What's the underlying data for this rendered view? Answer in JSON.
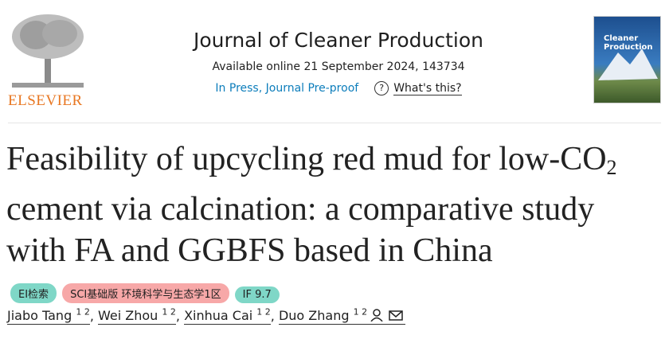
{
  "header": {
    "publisher": "ELSEVIER",
    "journal": "Journal of Cleaner Production",
    "available": "Available online 21 September 2024, 143734",
    "status": "In Press, Journal Pre-proof",
    "help": "What's this?",
    "cover_title": "Cleaner Production"
  },
  "article": {
    "title": {
      "line1": "Feasibility of upcycling red mud for low-CO",
      "subscript": "2",
      "line2": "cement via calcination: a comparative study",
      "line3": "with FA and GGBFS based in China"
    },
    "badges": [
      "EI检索",
      "SCI基础版 环境科学与生态学1区",
      "IF 9.7"
    ],
    "authors": [
      {
        "name": "Jiabo Tang",
        "aff": "1 2"
      },
      {
        "name": "Wei Zhou",
        "aff": "1 2"
      },
      {
        "name": "Xinhua Cai",
        "aff": "1 2"
      },
      {
        "name": "Duo Zhang",
        "aff": "1 2"
      }
    ]
  }
}
